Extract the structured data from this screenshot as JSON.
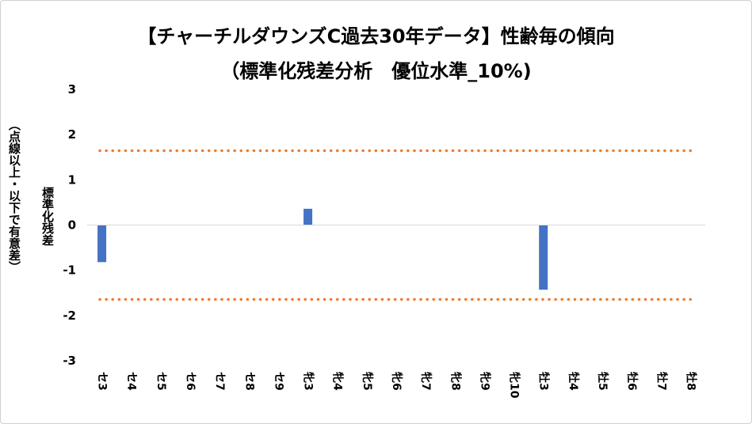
{
  "chart_data": {
    "type": "bar",
    "title": "【チャーチルダウンズC過去30年データ】性齢毎の傾向",
    "subtitle": "（標準化残差分析　優位水準_10%)",
    "ylabel": "標準化残差",
    "ylabel_sub": "（点線以上・以下で有意差）",
    "categories": [
      "セ3",
      "セ4",
      "セ5",
      "セ6",
      "セ7",
      "セ8",
      "セ9",
      "牝3",
      "牝4",
      "牝5",
      "牝6",
      "牝7",
      "牝8",
      "牝9",
      "牝10",
      "牡3",
      "牡4",
      "牡5",
      "牡6",
      "牡7",
      "牡8"
    ],
    "series": [
      {
        "values": [
          -0.82,
          0,
          0,
          0,
          0,
          0,
          0,
          0.36,
          0,
          0,
          0,
          0,
          0,
          0,
          0,
          -1.43,
          0,
          0,
          0,
          0,
          0
        ]
      }
    ],
    "threshold_upper": 1.645,
    "threshold_lower": -1.645,
    "ylim": [
      -3,
      3
    ],
    "yticks": [
      3,
      2,
      1,
      0,
      -1,
      -2,
      -3
    ],
    "grid": false,
    "legend": "none",
    "bar_color": "#4472c4",
    "threshold_color": "#ed7d31"
  }
}
